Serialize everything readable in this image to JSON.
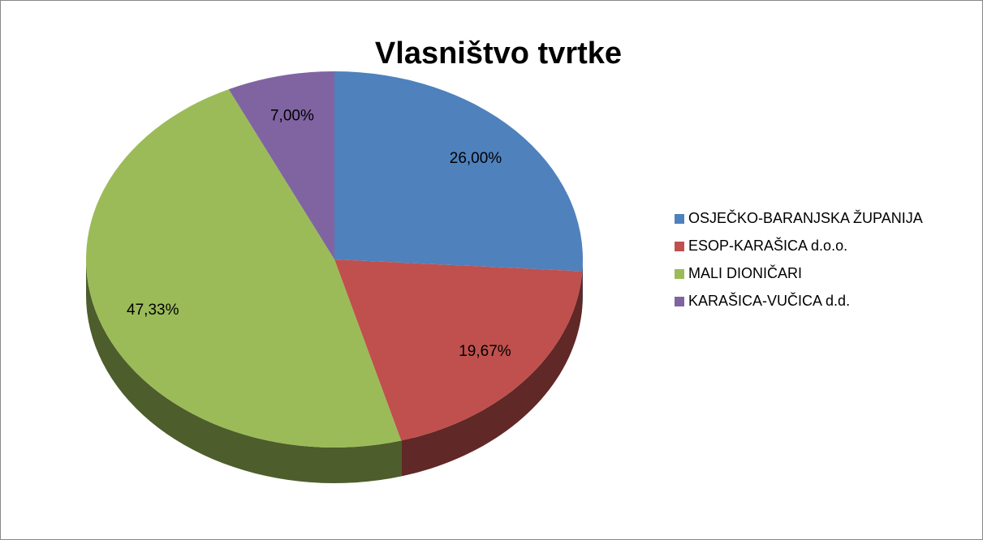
{
  "chart_data": {
    "type": "pie",
    "title": "Vlasništvo tvrtke",
    "categories": [
      "OSJEČKO-BARANJSKA ŽUPANIJA",
      "ESOP-KARAŠICA d.o.o.",
      "MALI DIONIČARI",
      "KARAŠICA-VUČICA d.d."
    ],
    "values": [
      26,
      19.67,
      47.33,
      7
    ],
    "value_labels": [
      "26,00%",
      "19,67%",
      "47,33%",
      "7,00%"
    ],
    "colors": [
      "#4f81bd",
      "#c0504d",
      "#9bbb59",
      "#8064a2"
    ],
    "legend": "right"
  }
}
